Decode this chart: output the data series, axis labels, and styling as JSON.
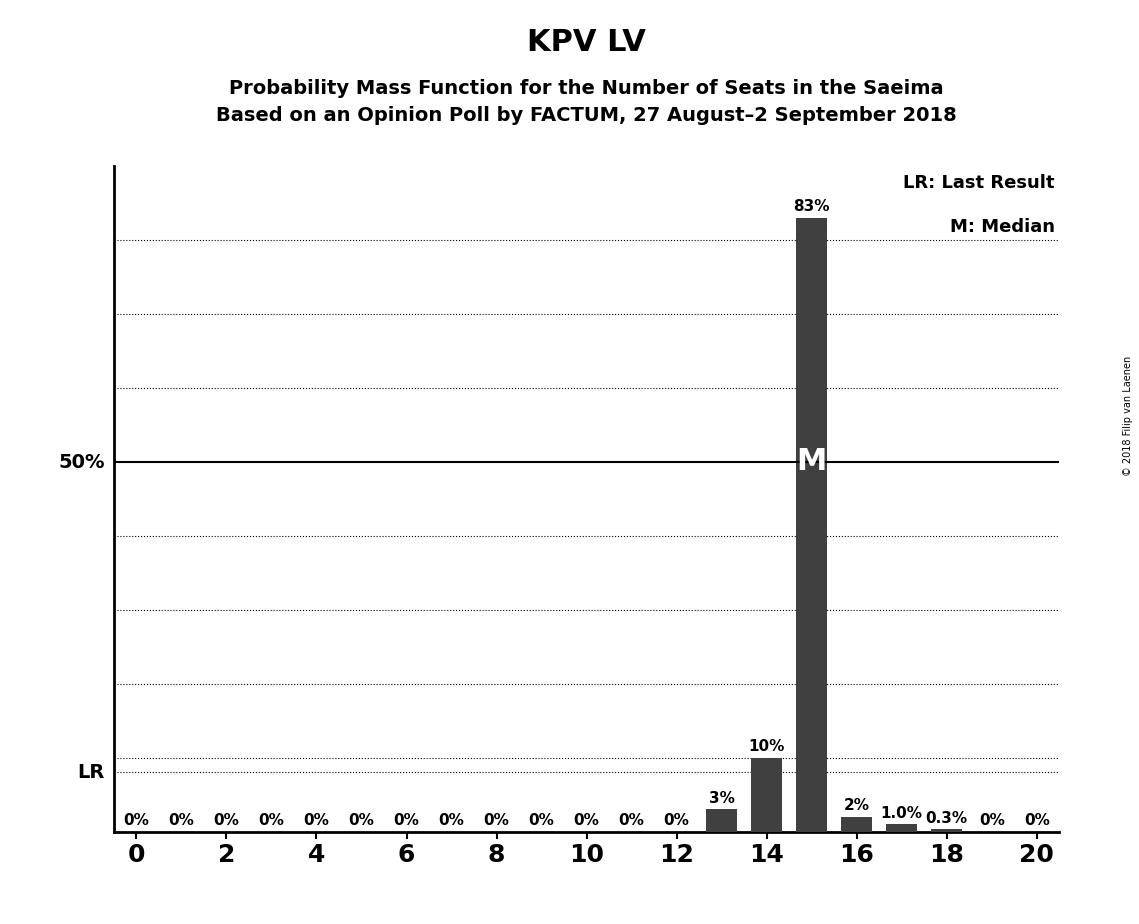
{
  "title": "KPV LV",
  "subtitle1": "Probability Mass Function for the Number of Seats in the Saeima",
  "subtitle2": "Based on an Opinion Poll by FACTUM, 27 August–2 September 2018",
  "copyright": "© 2018 Filip van Laenen",
  "seats": [
    0,
    1,
    2,
    3,
    4,
    5,
    6,
    7,
    8,
    9,
    10,
    11,
    12,
    13,
    14,
    15,
    16,
    17,
    18,
    19,
    20
  ],
  "probabilities": [
    0.0,
    0.0,
    0.0,
    0.0,
    0.0,
    0.0,
    0.0,
    0.0,
    0.0,
    0.0,
    0.0,
    0.0,
    0.0,
    3.0,
    10.0,
    83.0,
    2.0,
    1.0,
    0.3,
    0.0,
    0.0
  ],
  "bar_labels": [
    "0%",
    "0%",
    "0%",
    "0%",
    "0%",
    "0%",
    "0%",
    "0%",
    "0%",
    "0%",
    "0%",
    "0%",
    "0%",
    "3%",
    "10%",
    "83%",
    "2%",
    "1.0%",
    "0.3%",
    "0%",
    "0%"
  ],
  "bar_color": "#404040",
  "median_seat": 15,
  "lr_level": 8.0,
  "lr_label": "LR",
  "median_label": "M",
  "fifty_pct_line": 50.0,
  "ylim": [
    0,
    90
  ],
  "xlim": [
    -0.5,
    20.5
  ],
  "xticks": [
    0,
    2,
    4,
    6,
    8,
    10,
    12,
    14,
    16,
    18,
    20
  ],
  "dotted_lines": [
    10,
    20,
    30,
    40,
    60,
    70,
    80
  ],
  "background_color": "#ffffff",
  "bar_width": 0.7,
  "legend_lr": "LR: Last Result",
  "legend_m": "M: Median",
  "label_fontsize": 11,
  "title_fontsize": 22,
  "subtitle_fontsize": 14,
  "tick_fontsize": 18,
  "legend_fontsize": 13,
  "fifty_label_fontsize": 14,
  "lr_label_fontsize": 14,
  "median_label_fontsize": 22
}
